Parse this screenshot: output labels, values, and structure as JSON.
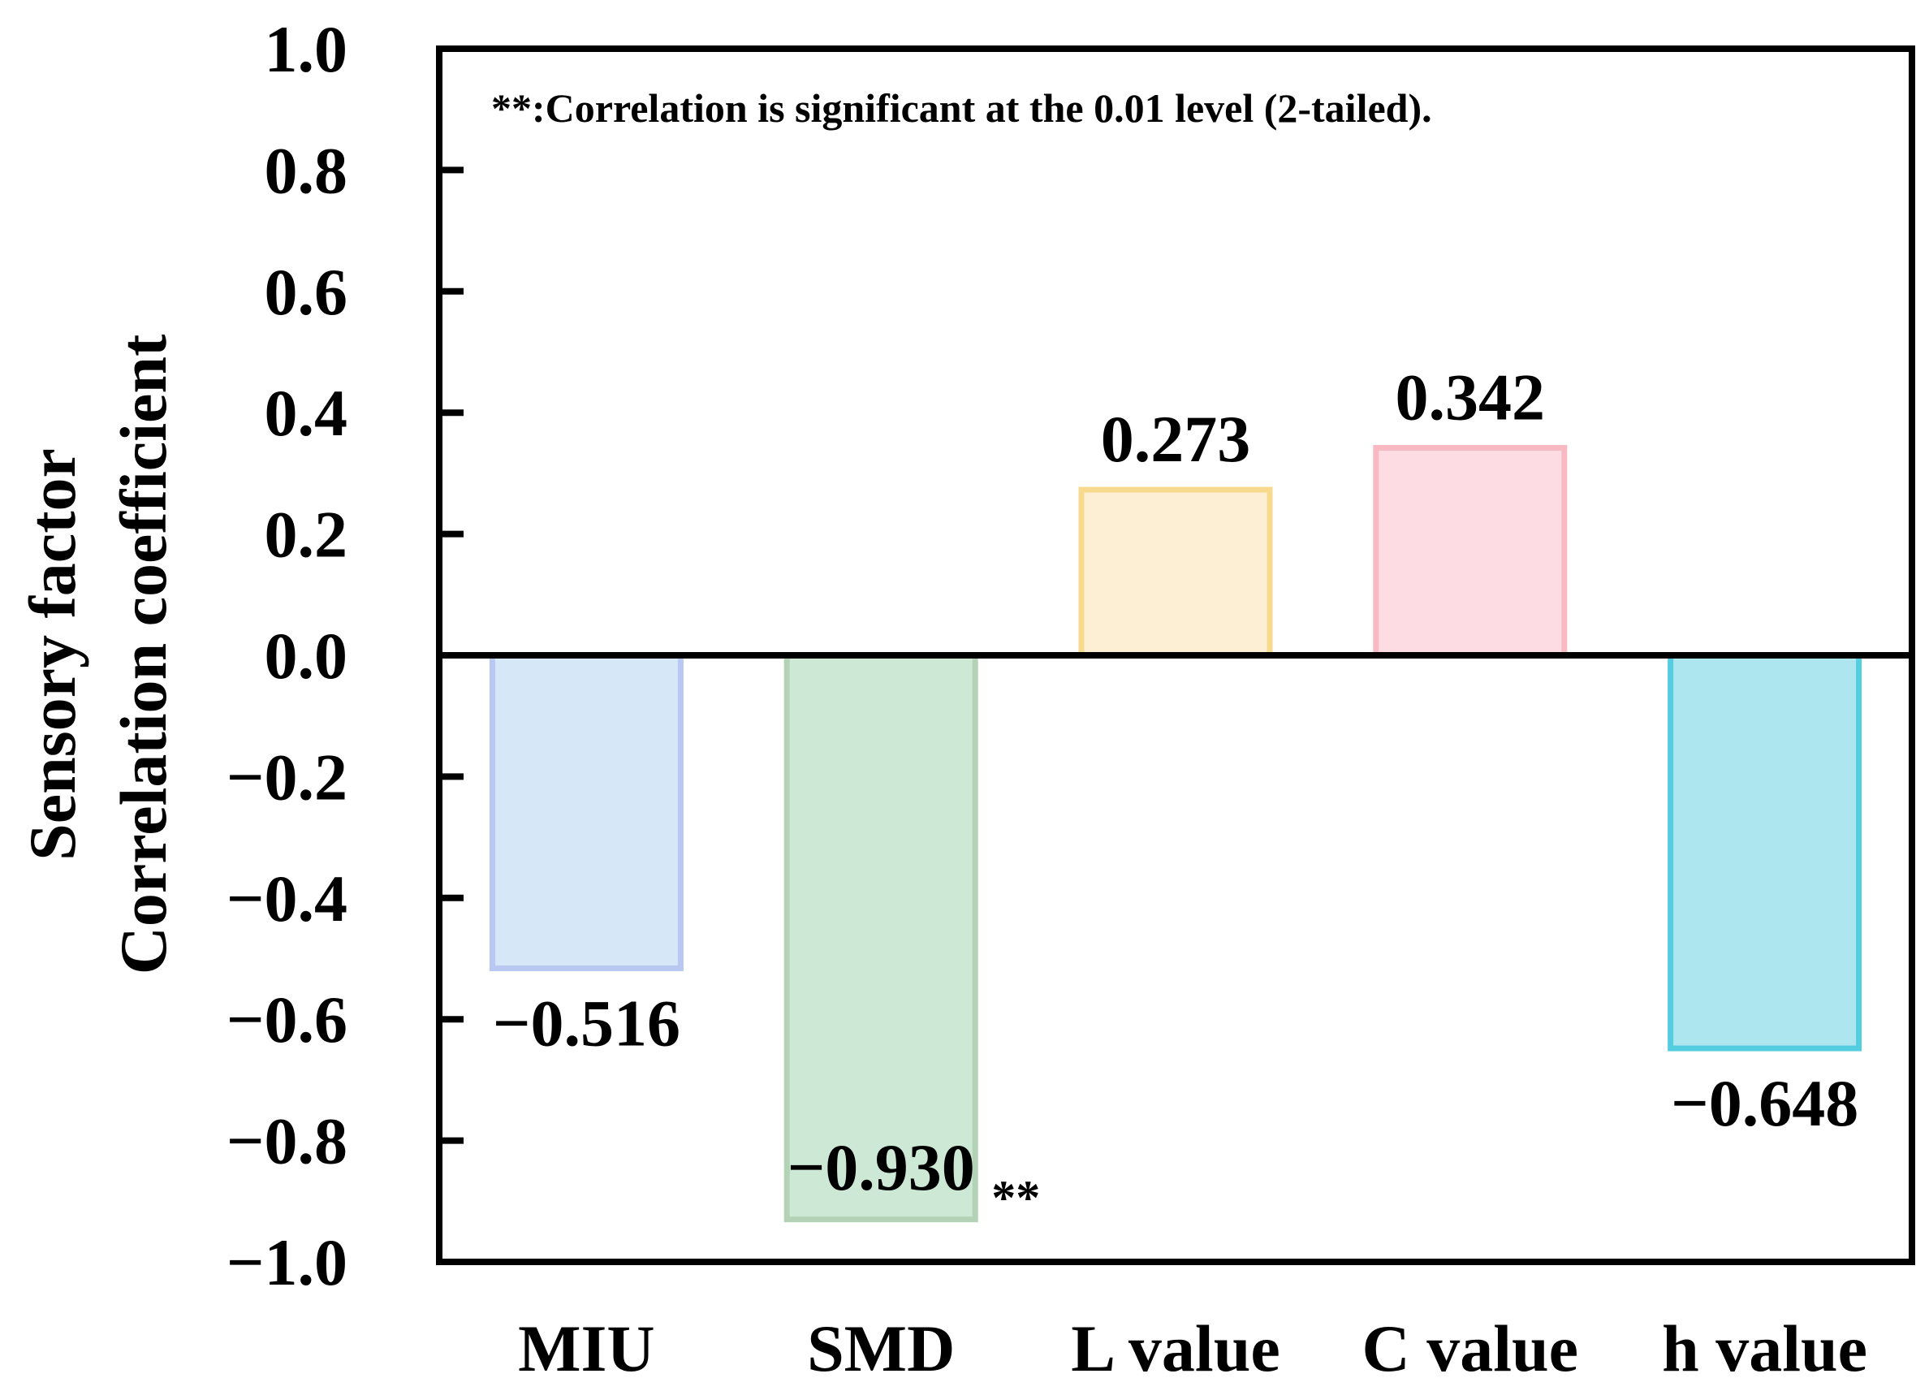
{
  "chart_data": {
    "type": "bar",
    "categories": [
      "MIU",
      "SMD",
      "L value",
      "C value",
      "h value"
    ],
    "values": [
      -0.516,
      -0.93,
      0.273,
      0.342,
      -0.648
    ],
    "value_labels": [
      "−0.516",
      "−0.930",
      "0.273",
      "0.342",
      "−0.648"
    ],
    "significance": [
      "",
      "**",
      "",
      "",
      ""
    ],
    "ylabel_lines": [
      "Sensory factor",
      "Correlation coefficient"
    ],
    "xlabel": "",
    "ylim": [
      -1.0,
      1.0
    ],
    "yticks": [
      1.0,
      0.8,
      0.6,
      0.4,
      0.2,
      0.0,
      -0.2,
      -0.4,
      -0.6,
      -0.8,
      -1.0
    ],
    "ytick_labels": [
      "1.0",
      "0.8",
      "0.6",
      "0.4",
      "0.2",
      "0.0",
      "−0.2",
      "−0.4",
      "−0.6",
      "−0.8",
      "−1.0"
    ],
    "annotation": "**:Correlation is significant at the 0.01 level (2-tailed).",
    "grid": false,
    "bar_fill_colors": [
      "#d6e8f8",
      "#cde8d5",
      "#fdefd3",
      "#fddde3",
      "#ade6ee"
    ],
    "bar_edge_colors": [
      "#b8c8f2",
      "#b3d2b6",
      "#f8da8f",
      "#f9b9c2",
      "#55cde0"
    ]
  }
}
